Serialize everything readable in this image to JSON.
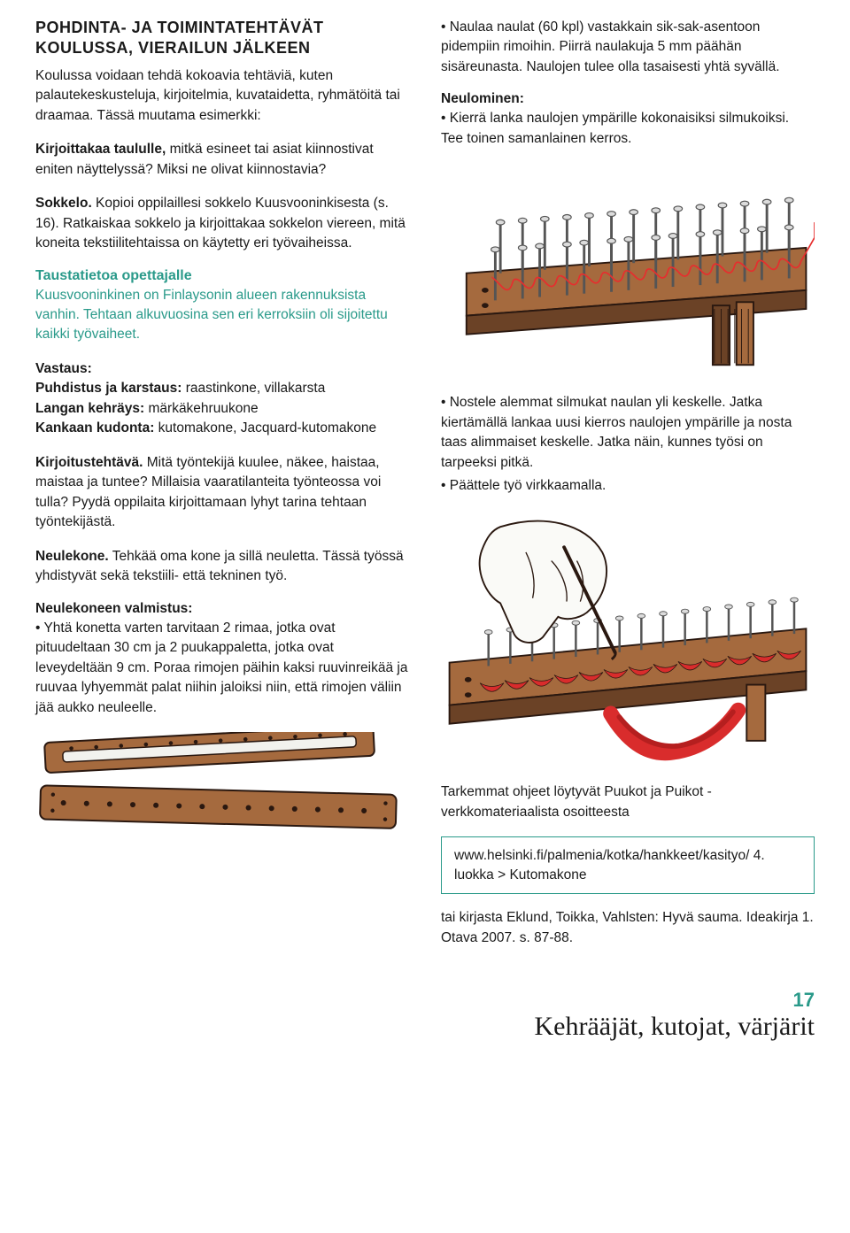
{
  "left": {
    "section_title": "POHDINTA- JA TOIMINTATEHTÄVÄT KOULUSSA, VIERAILUN JÄLKEEN",
    "intro": "Koulussa voidaan tehdä kokoavia tehtäviä, kuten palautekeskusteluja, kirjoitelmia, kuvataidetta, ryhmätöitä tai draamaa. Tässä muutama esimerkki:",
    "kirjoittakaa_label": "Kirjoittakaa taululle,",
    "kirjoittakaa_text": " mitkä esineet tai asiat kiinnostivat eniten näyttelyssä? Miksi ne olivat kiinnostavia?",
    "sokkelo_label": "Sokkelo.",
    "sokkelo_text": " Kopioi oppilaillesi sokkelo Kuusvooninkisesta (s. 16). Ratkaiskaa sokkelo ja kirjoittakaa sokkelon viereen, mitä koneita tekstiilitehtaissa on käytetty eri työvaiheissa.",
    "teacher_heading": "Taustatietoa opettajalle",
    "teacher_body": "Kuusvooninkinen on Finlaysonin alueen rakennuksista vanhin. Tehtaan alkuvuosina sen eri kerroksiin oli sijoitettu kaikki työvaiheet.",
    "vastaus_label": "Vastaus:",
    "vastaus_l1_label": "Puhdistus ja karstaus:",
    "vastaus_l1_text": " raastinkone, villakarsta",
    "vastaus_l2_label": "Langan kehräys:",
    "vastaus_l2_text": " märkäkehruukone",
    "vastaus_l3_label": "Kankaan kudonta:",
    "vastaus_l3_text": " kutomakone, Jacquard-kutomakone",
    "kirjoitus_label": "Kirjoitustehtävä.",
    "kirjoitus_text": " Mitä työntekijä kuulee, näkee, haistaa, maistaa ja tuntee? Millaisia vaaratilanteita työnteossa voi tulla? Pyydä oppilaita kirjoittamaan lyhyt tarina tehtaan työntekijästä.",
    "neulekone_label": "Neulekone.",
    "neulekone_text": " Tehkää oma kone ja sillä neuletta. Tässä työssä yhdistyvät sekä tekstiili- että tekninen työ.",
    "valmistus_label": "Neulekoneen valmistus:",
    "valmistus_text": "• Yhtä konetta varten tarvitaan 2 rimaa, jotka ovat pituudeltaan 30 cm ja 2 puukappaletta, jotka ovat leveydeltään 9 cm. Poraa rimojen päihin kaksi ruuvinreikää ja ruuvaa lyhyemmät palat niihin jaloiksi niin, että rimojen väliin jää aukko neuleelle.",
    "illus1": {
      "wood_fill": "#a56a3e",
      "wood_stroke": "#2a1810",
      "hole_color": "#2a1810",
      "slot_color": "#f2f2ee"
    }
  },
  "right": {
    "naulaa_text": "• Naulaa naulat (60 kpl) vastakkain sik-sak-asentoon pidempiin rimoihin. Piirrä naulakuja 5 mm päähän sisäreunasta. Naulojen tulee olla tasaisesti yhtä syvällä.",
    "neulominen_label": "Neulominen:",
    "neulominen_text": "• Kierrä lanka naulojen ympärille kokonaisiksi silmukoiksi. Tee toinen samanlainen kerros.",
    "nostele_text": "• Nostele alemmat silmukat naulan yli keskelle. Jatka kiertämällä lankaa uusi kierros naulojen ympärille ja nosta taas alimmaiset keskelle. Jatka näin, kunnes työsi on tarpeeksi pitkä.",
    "paattele_text": "• Päättele työ virkkaamalla.",
    "tarkemmat_text": "Tarkemmat ohjeet löytyvät Puukot ja Puikot -verkkomateriaalista osoitteesta",
    "link_text": "www.helsinki.fi/palmenia/kotka/hankkeet/kasityo/ 4. luokka > Kutomakone",
    "kirja_text": "tai kirjasta Eklund, Toikka, Vahlsten: Hyvä sauma. Ideakirja 1. Otava 2007. s. 87-88.",
    "illus2": {
      "wood_fill": "#a56a3e",
      "wood_stroke": "#2a1810",
      "nail_fill": "#dcdcdc",
      "nail_stroke": "#555555",
      "yarn_color": "#e62e2e",
      "shadow_color": "#6b4226"
    },
    "illus3": {
      "wood_fill": "#a56a3e",
      "wood_stroke": "#2a1810",
      "nail_fill": "#dcdcdc",
      "nail_stroke": "#555555",
      "yarn_color": "#e62e2e",
      "knit_color": "#d92c2c",
      "hand_fill": "#fafaf7",
      "hand_stroke": "#2a1810",
      "needle_color": "#2a1810"
    }
  },
  "footer": {
    "page_number": "17",
    "title": "Kehrääjät, kutojat, värjärit"
  }
}
